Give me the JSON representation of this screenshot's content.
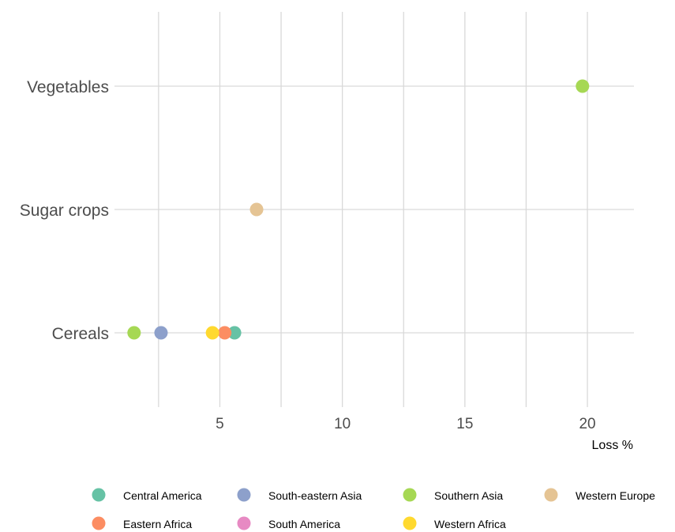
{
  "chart_data": {
    "type": "scatter",
    "title": "",
    "xlabel": "Loss %",
    "ylabel": "",
    "categories": [
      "Cereals",
      "Sugar crops",
      "Vegetables"
    ],
    "x_ticks": [
      5,
      10,
      15,
      20
    ],
    "xlim": [
      0.7,
      21.9
    ],
    "grid": true,
    "legend_position": "bottom",
    "series": [
      {
        "name": "Central America",
        "color": "#66C2A5",
        "points": [
          {
            "category": "Cereals",
            "x": 5.6
          }
        ]
      },
      {
        "name": "South-eastern Asia",
        "color": "#8DA0CB",
        "points": [
          {
            "category": "Cereals",
            "x": 2.6
          }
        ]
      },
      {
        "name": "Southern Asia",
        "color": "#A6D854",
        "points": [
          {
            "category": "Cereals",
            "x": 1.5
          },
          {
            "category": "Vegetables",
            "x": 19.8
          }
        ]
      },
      {
        "name": "Western Europe",
        "color": "#E5C494",
        "points": [
          {
            "category": "Sugar crops",
            "x": 6.5
          }
        ]
      },
      {
        "name": "Eastern Africa",
        "color": "#FC8D62",
        "points": [
          {
            "category": "Cereals",
            "x": 5.2
          }
        ]
      },
      {
        "name": "South America",
        "color": "#E78AC3",
        "points": []
      },
      {
        "name": "Western Africa",
        "color": "#FFD92F",
        "points": [
          {
            "category": "Cereals",
            "x": 4.7
          }
        ]
      }
    ]
  }
}
